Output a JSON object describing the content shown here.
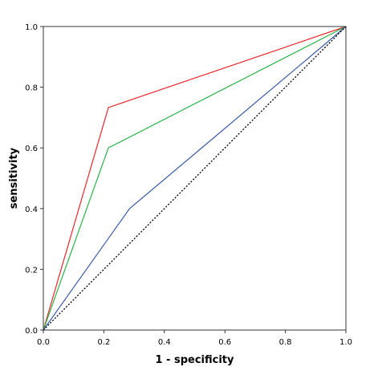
{
  "chart_data": {
    "type": "line",
    "title": "",
    "xlabel": "1 - specificity",
    "ylabel": "sensitivity",
    "xlim": [
      0.0,
      1.0
    ],
    "ylim": [
      0.0,
      1.0
    ],
    "x_ticks": [
      "0.0",
      "0.2",
      "0.4",
      "0.6",
      "0.8",
      "1.0"
    ],
    "y_ticks": [
      "0.0",
      "0.2",
      "0.4",
      "0.6",
      "0.8",
      "1.0"
    ],
    "grid": false,
    "legend": "none",
    "series": [
      {
        "color": "#e8272b",
        "style": "solid",
        "x": [
          0.0,
          0.215,
          1.0
        ],
        "y": [
          0.0,
          0.733,
          1.0
        ]
      },
      {
        "color": "#2bb34a",
        "style": "solid",
        "x": [
          0.0,
          0.215,
          1.0
        ],
        "y": [
          0.0,
          0.6,
          1.0
        ]
      },
      {
        "color": "#3a5ba8",
        "style": "solid",
        "x": [
          0.0,
          0.285,
          1.0
        ],
        "y": [
          0.0,
          0.4,
          1.0
        ]
      },
      {
        "color": "#000000",
        "style": "dotted",
        "x": [
          0.0,
          1.0
        ],
        "y": [
          0.0,
          1.0
        ]
      }
    ]
  }
}
